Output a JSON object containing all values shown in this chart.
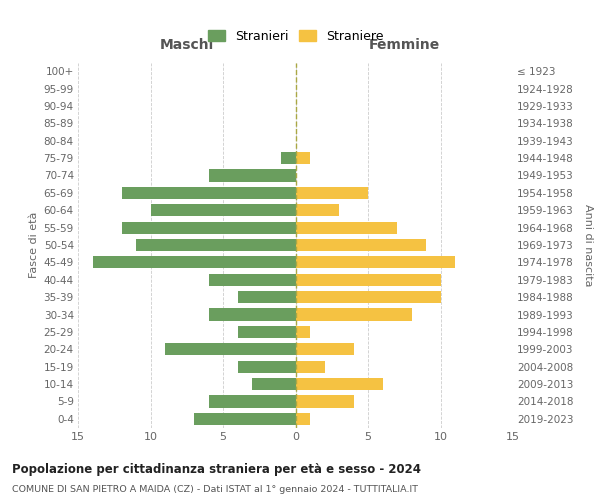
{
  "age_groups_bottom_to_top": [
    "0-4",
    "5-9",
    "10-14",
    "15-19",
    "20-24",
    "25-29",
    "30-34",
    "35-39",
    "40-44",
    "45-49",
    "50-54",
    "55-59",
    "60-64",
    "65-69",
    "70-74",
    "75-79",
    "80-84",
    "85-89",
    "90-94",
    "95-99",
    "100+"
  ],
  "birth_years_bottom_to_top": [
    "2019-2023",
    "2014-2018",
    "2009-2013",
    "2004-2008",
    "1999-2003",
    "1994-1998",
    "1989-1993",
    "1984-1988",
    "1979-1983",
    "1974-1978",
    "1969-1973",
    "1964-1968",
    "1959-1963",
    "1954-1958",
    "1949-1953",
    "1944-1948",
    "1939-1943",
    "1934-1938",
    "1929-1933",
    "1924-1928",
    "≤ 1923"
  ],
  "maschi_bottom_to_top": [
    7,
    6,
    3,
    4,
    9,
    4,
    6,
    4,
    6,
    14,
    11,
    12,
    10,
    12,
    6,
    1,
    0,
    0,
    0,
    0,
    0
  ],
  "femmine_bottom_to_top": [
    1,
    4,
    6,
    2,
    4,
    1,
    8,
    10,
    10,
    11,
    9,
    7,
    3,
    5,
    0,
    1,
    0,
    0,
    0,
    0,
    0
  ],
  "color_maschi": "#6a9e5e",
  "color_femmine": "#f5c242",
  "title_main": "Popolazione per cittadinanza straniera per età e sesso - 2024",
  "title_sub": "COMUNE DI SAN PIETRO A MAIDA (CZ) - Dati ISTAT al 1° gennaio 2024 - TUTTITALIA.IT",
  "xlabel_left": "Maschi",
  "xlabel_right": "Femmine",
  "ylabel_left": "Fasce di età",
  "ylabel_right": "Anni di nascita",
  "legend_maschi": "Stranieri",
  "legend_femmine": "Straniere",
  "xlim": 15,
  "bg_color": "#ffffff",
  "grid_color": "#cccccc"
}
